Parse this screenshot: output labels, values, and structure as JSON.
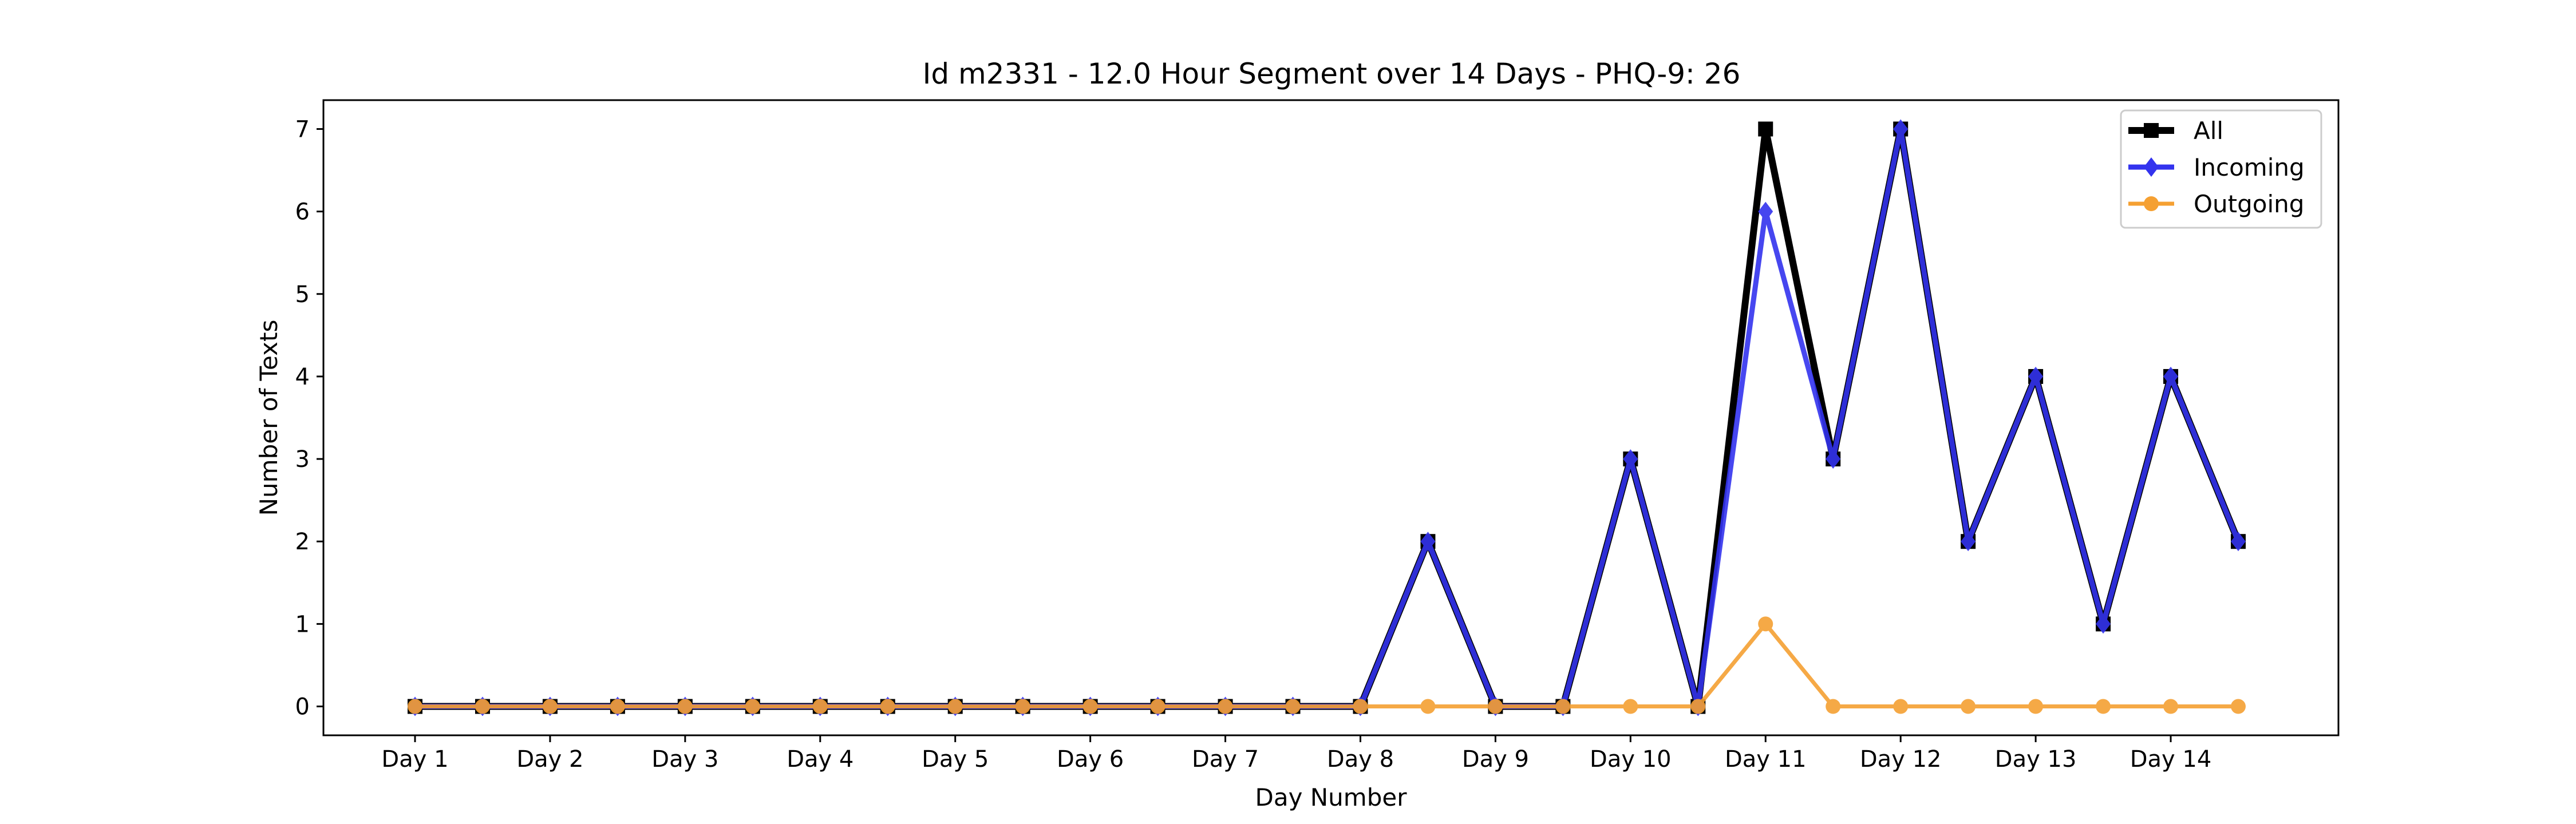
{
  "chart_data": {
    "type": "line",
    "title": "Id m2331 - 12.0 Hour Segment over 14 Days - PHQ-9: 26",
    "xlabel": "Day Number",
    "ylabel": "Number of Texts",
    "x_tick_labels": [
      "Day 1",
      "Day 2",
      "Day 3",
      "Day 4",
      "Day 5",
      "Day 6",
      "Day 7",
      "Day 8",
      "Day 9",
      "Day 10",
      "Day 11",
      "Day 12",
      "Day 13",
      "Day 14"
    ],
    "y_ticks": [
      0,
      1,
      2,
      3,
      4,
      5,
      6,
      7
    ],
    "ylim": [
      -0.35,
      7.35
    ],
    "legend_position": "top-right",
    "grid": false,
    "series": [
      {
        "name": "All",
        "color": "#000000",
        "marker": "square",
        "values": [
          0,
          0,
          0,
          0,
          0,
          0,
          0,
          0,
          0,
          0,
          0,
          0,
          0,
          0,
          0,
          2,
          0,
          0,
          3,
          0,
          7,
          3,
          7,
          2,
          4,
          1,
          4,
          2
        ]
      },
      {
        "name": "Incoming",
        "color": "#3333ee",
        "marker": "diamond",
        "values": [
          0,
          0,
          0,
          0,
          0,
          0,
          0,
          0,
          0,
          0,
          0,
          0,
          0,
          0,
          0,
          2,
          0,
          0,
          3,
          0,
          6,
          3,
          7,
          2,
          4,
          1,
          4,
          2
        ]
      },
      {
        "name": "Outgoing",
        "color": "#f5a032",
        "marker": "circle",
        "values": [
          0,
          0,
          0,
          0,
          0,
          0,
          0,
          0,
          0,
          0,
          0,
          0,
          0,
          0,
          0,
          0,
          0,
          0,
          0,
          0,
          1,
          0,
          0,
          0,
          0,
          0,
          0,
          0
        ]
      }
    ]
  }
}
